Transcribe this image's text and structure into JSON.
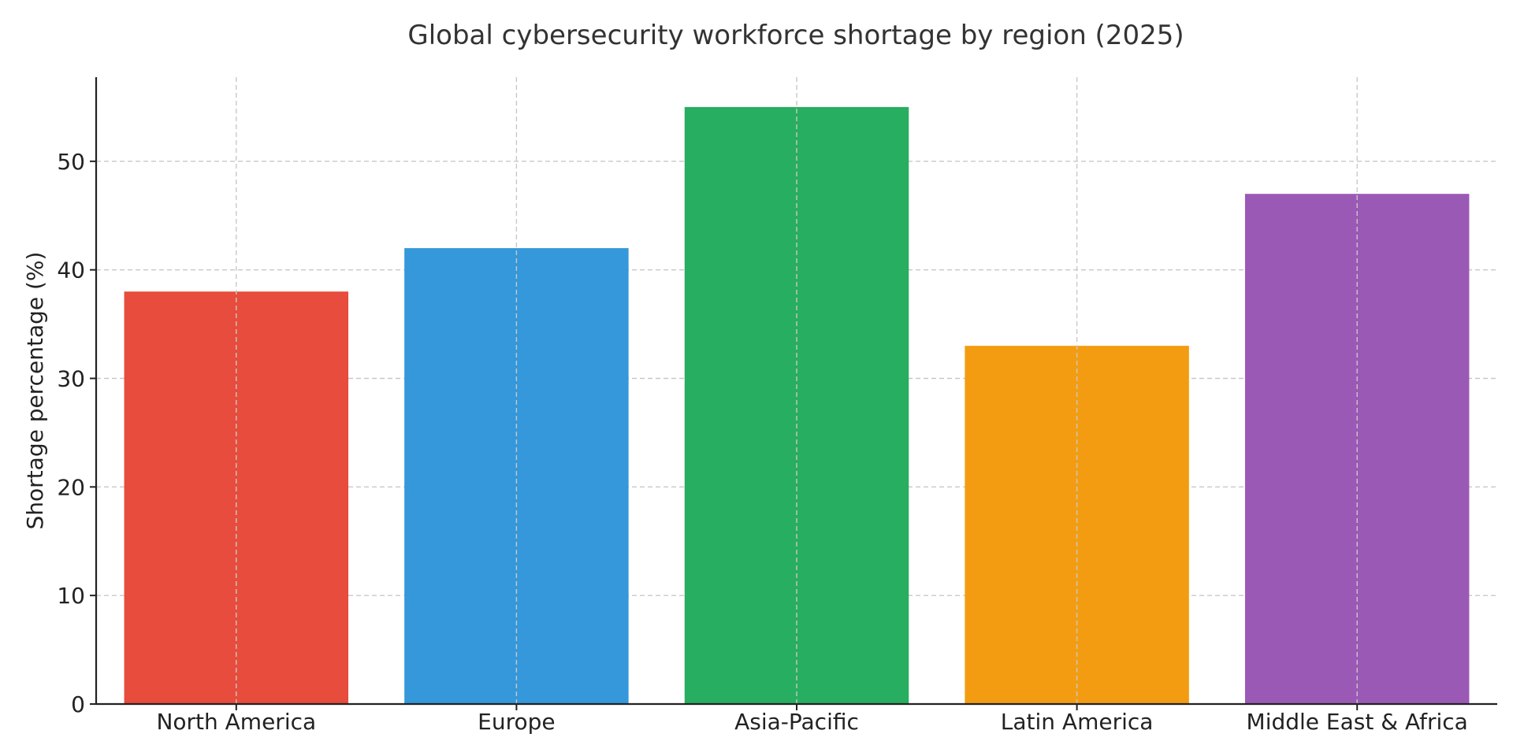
{
  "chart_data": {
    "type": "bar",
    "title": "Global cybersecurity workforce shortage by region (2025)",
    "xlabel": "",
    "ylabel": "Shortage percentage (%)",
    "categories": [
      "North America",
      "Europe",
      "Asia-Pacific",
      "Latin America",
      "Middle East & Africa"
    ],
    "values": [
      38,
      42,
      55,
      33,
      47
    ],
    "colors": [
      "#e74c3c",
      "#3498db",
      "#27ae60",
      "#f39c12",
      "#9b59b6"
    ],
    "ylim": [
      0,
      57.75
    ],
    "yticks": [
      0,
      10,
      20,
      30,
      40,
      50
    ],
    "grid": true
  }
}
